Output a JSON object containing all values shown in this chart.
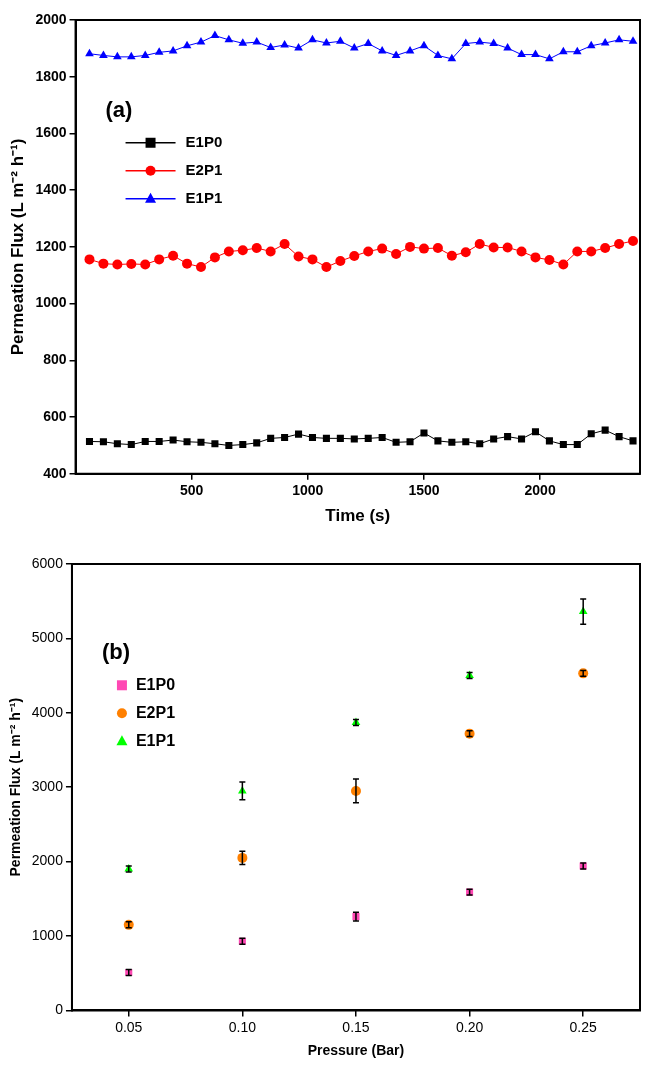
{
  "chart_data": [
    {
      "type": "line",
      "xlabel": "Time (s)",
      "ylabel": "Permeation Flux (L m⁻² h⁻¹)",
      "annotations": [
        "(a)"
      ],
      "x": [
        60,
        120,
        180,
        240,
        300,
        360,
        420,
        480,
        540,
        600,
        660,
        720,
        780,
        840,
        900,
        960,
        1020,
        1080,
        1140,
        1200,
        1260,
        1320,
        1380,
        1440,
        1500,
        1560,
        1620,
        1680,
        1740,
        1800,
        1860,
        1920,
        1980,
        2040,
        2100,
        2160,
        2220,
        2280,
        2340,
        2400
      ],
      "series": [
        {
          "name": "E1P0",
          "color": "#000000",
          "marker": "square",
          "values": [
            514,
            513,
            506,
            503,
            514,
            514,
            519,
            513,
            511,
            506,
            500,
            503,
            509,
            525,
            528,
            540,
            528,
            525,
            525,
            523,
            525,
            528,
            511,
            513,
            544,
            516,
            511,
            513,
            506,
            523,
            531,
            523,
            548,
            516,
            503,
            503,
            541,
            554,
            531,
            516
          ]
        },
        {
          "name": "E2P1",
          "color": "#ff0000",
          "marker": "circle",
          "values": [
            1156,
            1141,
            1138,
            1140,
            1138,
            1156,
            1169,
            1141,
            1129,
            1163,
            1184,
            1188,
            1196,
            1184,
            1210,
            1166,
            1156,
            1129,
            1150,
            1168,
            1184,
            1194,
            1175,
            1200,
            1194,
            1196,
            1169,
            1181,
            1210,
            1198,
            1198,
            1184,
            1163,
            1154,
            1138,
            1184,
            1184,
            1196,
            1210,
            1221
          ]
        },
        {
          "name": "E1P1",
          "color": "#0000ff",
          "marker": "triangle",
          "values": [
            1881,
            1875,
            1870,
            1870,
            1875,
            1886,
            1891,
            1909,
            1922,
            1945,
            1930,
            1918,
            1922,
            1903,
            1912,
            1901,
            1930,
            1919,
            1925,
            1901,
            1917,
            1891,
            1875,
            1891,
            1909,
            1875,
            1863,
            1917,
            1922,
            1917,
            1901,
            1878,
            1878,
            1863,
            1888,
            1888,
            1909,
            1919,
            1930,
            1925
          ]
        }
      ],
      "xlim": [
        0,
        2430
      ],
      "xticks": [
        500,
        1000,
        1500,
        2000
      ],
      "ylim": [
        400,
        2000
      ],
      "yticks": [
        400,
        600,
        800,
        1000,
        1200,
        1400,
        1600,
        1800,
        2000
      ],
      "legend": "top left",
      "grid": false
    },
    {
      "type": "scatter",
      "xlabel": "Pressure (Bar)",
      "ylabel": "Permeation Flux (L m⁻² h⁻¹)",
      "annotations": [
        "(b)"
      ],
      "x": [
        0.05,
        0.1,
        0.15,
        0.2,
        0.25
      ],
      "series": [
        {
          "name": "E1P0",
          "color": "#ff48b4",
          "marker": "square",
          "values": [
            510,
            930,
            1260,
            1590,
            1940
          ],
          "errors": [
            40,
            40,
            60,
            40,
            40
          ]
        },
        {
          "name": "E2P1",
          "color": "#ff8000",
          "marker": "circle",
          "values": [
            1150,
            2050,
            2950,
            3720,
            4530
          ],
          "errors": [
            40,
            90,
            160,
            40,
            40
          ]
        },
        {
          "name": "E1P1",
          "color": "#00ff00",
          "marker": "triangle",
          "values": [
            1900,
            2950,
            3870,
            4500,
            5360
          ],
          "errors": [
            40,
            120,
            40,
            40,
            170
          ]
        }
      ],
      "xlim": [
        0.025,
        0.275
      ],
      "xticks": [
        {
          "value": 0.05,
          "label": "0.05"
        },
        {
          "value": 0.1,
          "label": "0.10"
        },
        {
          "value": 0.15,
          "label": "0.15"
        },
        {
          "value": 0.2,
          "label": "0.20"
        },
        {
          "value": 0.25,
          "label": "0.25"
        }
      ],
      "ylim": [
        0,
        6000
      ],
      "yticks": [
        0,
        1000,
        2000,
        3000,
        4000,
        5000,
        6000
      ],
      "legend": "top left",
      "grid": false
    }
  ]
}
